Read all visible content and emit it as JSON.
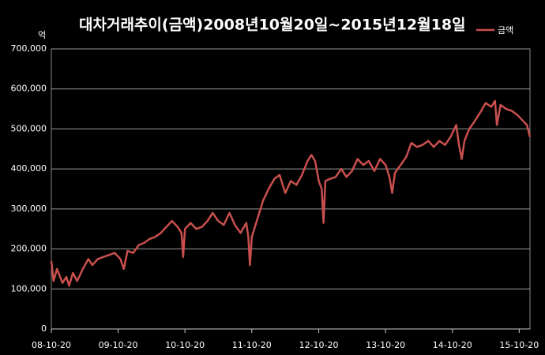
{
  "chart_data": {
    "type": "line",
    "title": "대차거래추이(금액)2008년10월20일~2015년12월18일",
    "y_label": "억",
    "x": [
      "08-10-20",
      "08-11-01",
      "08-11-20",
      "08-12-20",
      "09-01-10",
      "09-01-25",
      "09-02-15",
      "09-03-10",
      "09-04-10",
      "09-05-10",
      "09-06-01",
      "09-07-01",
      "09-08-01",
      "09-09-01",
      "09-10-01",
      "09-11-01",
      "09-11-20",
      "09-12-10",
      "10-01-10",
      "10-02-10",
      "10-03-10",
      "10-04-10",
      "10-05-10",
      "10-06-10",
      "10-07-10",
      "10-08-10",
      "10-09-10",
      "10-10-01",
      "10-10-10",
      "10-10-20",
      "10-11-20",
      "10-12-20",
      "11-01-20",
      "11-02-20",
      "11-03-20",
      "11-04-20",
      "11-05-20",
      "11-06-20",
      "11-07-20",
      "11-08-20",
      "11-09-20",
      "11-10-01",
      "11-10-10",
      "11-10-20",
      "11-11-20",
      "11-12-20",
      "12-01-20",
      "12-02-20",
      "12-03-20",
      "12-04-20",
      "12-05-20",
      "12-06-20",
      "12-07-20",
      "12-08-20",
      "12-09-10",
      "12-09-30",
      "12-10-20",
      "12-11-05",
      "12-11-15",
      "12-11-25",
      "12-12-20",
      "13-01-20",
      "13-02-20",
      "13-03-20",
      "13-04-20",
      "13-05-20",
      "13-06-20",
      "13-07-20",
      "13-08-20",
      "13-09-20",
      "13-10-20",
      "13-11-10",
      "13-11-25",
      "13-12-10",
      "14-01-10",
      "14-02-10",
      "14-03-10",
      "14-04-10",
      "14-05-10",
      "14-06-10",
      "14-07-10",
      "14-08-10",
      "14-09-10",
      "14-10-10",
      "14-11-10",
      "14-11-25",
      "14-12-10",
      "14-12-25",
      "15-01-20",
      "15-02-20",
      "15-03-20",
      "15-04-20",
      "15-05-20",
      "15-06-10",
      "15-06-20",
      "15-07-10",
      "15-08-10",
      "15-09-10",
      "15-10-10",
      "15-11-10",
      "15-12-01",
      "15-12-18"
    ],
    "series": [
      {
        "name": "금액",
        "color": "#c9504e",
        "values": [
          170000,
          120000,
          150000,
          115000,
          130000,
          108000,
          140000,
          120000,
          150000,
          175000,
          160000,
          175000,
          180000,
          185000,
          190000,
          175000,
          150000,
          195000,
          190000,
          210000,
          215000,
          225000,
          230000,
          240000,
          255000,
          270000,
          255000,
          240000,
          180000,
          250000,
          265000,
          250000,
          255000,
          270000,
          290000,
          270000,
          260000,
          290000,
          260000,
          240000,
          265000,
          230000,
          160000,
          230000,
          275000,
          320000,
          350000,
          375000,
          385000,
          340000,
          370000,
          360000,
          385000,
          420000,
          435000,
          420000,
          370000,
          350000,
          265000,
          370000,
          375000,
          380000,
          400000,
          380000,
          395000,
          425000,
          410000,
          420000,
          395000,
          425000,
          410000,
          380000,
          340000,
          390000,
          410000,
          430000,
          465000,
          455000,
          460000,
          470000,
          455000,
          470000,
          460000,
          480000,
          510000,
          460000,
          425000,
          470000,
          500000,
          520000,
          540000,
          565000,
          555000,
          570000,
          510000,
          560000,
          550000,
          545000,
          535000,
          520000,
          510000,
          480000
        ]
      }
    ],
    "xlim": [
      "08-10-20",
      "15-12-18"
    ],
    "xticks": [
      "08-10-20",
      "09-10-20",
      "10-10-20",
      "11-10-20",
      "12-10-20",
      "13-10-20",
      "14-10-20",
      "15-10-20"
    ],
    "ylim": [
      0,
      700000
    ],
    "yticks": [
      0,
      {
        "value": 100000,
        "label": "100,000"
      },
      {
        "value": 200000,
        "label": "200,000"
      },
      {
        "value": 300000,
        "label": "300,000"
      },
      {
        "value": 400000,
        "label": "400,000"
      },
      {
        "value": 500000,
        "label": "500,000"
      },
      {
        "value": 600000,
        "label": "600,000"
      },
      {
        "value": 700000,
        "label": "700,000"
      }
    ],
    "grid": true
  }
}
